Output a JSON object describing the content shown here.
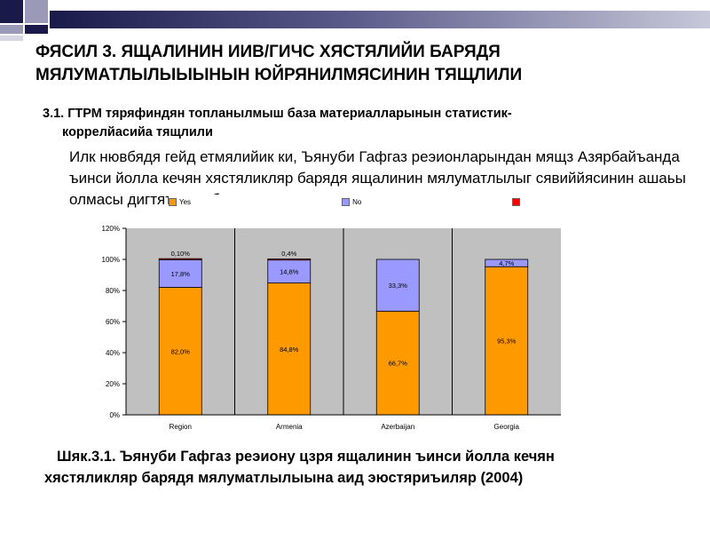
{
  "slide": {
    "title_line1": "ФЯСИЛ 3. ЯЩАЛИНИН ИИВ/ГИЧС ХЯСТЯЛИЙИ БАРЯДЯ",
    "title_line2": "МЯЛУМАТЛЫЛЫЫЫНЫН ЮЙРЯНИЛМЯСИНИН ТЯЩЛИЛИ",
    "subtitle_line1": "3.1. ГТРМ тяряфиндян топланылмыш база материалларынын статистик-",
    "subtitle_line2": "коррелйасийа тящлили",
    "paragraph": "Илк нювбядя гейд етмялийик ки, Ъянуби Гафгаз реэионларындан мящз Азярбайъанда ъинси йолла кечян хястяликляр барядя ящалинин мялуматлылыг сявиййясинин ашаьы олмасы дигтяти ъялб едир.",
    "caption_line1": "Шяк.3.1. Ъянуби Гафгаз реэиону цзря ящалинин ъинси йолла кечян",
    "caption_line2": "хястяликляр барядя мялуматлылыына аид эюстяриъиляр (2004)"
  },
  "colors": {
    "yes": "#FF9900",
    "no": "#9999FF",
    "third": "#FF0000",
    "plot_bg": "#C0C0C0",
    "accent_dark": "#1A1A4A",
    "accent_mid": "#5A5A8A"
  },
  "chart_data": {
    "type": "bar",
    "stacked": true,
    "categories": [
      "Region",
      "Armenia",
      "Azerbaijan",
      "Georgia"
    ],
    "series": [
      {
        "name": "Yes",
        "values": [
          82.0,
          84.8,
          66.7,
          95.3
        ],
        "labels": [
          "82,0%",
          "84,8%",
          "66,7%",
          "95,3%"
        ]
      },
      {
        "name": "No",
        "values": [
          17.8,
          14.8,
          33.3,
          4.7
        ],
        "labels": [
          "17,8%",
          "14,8%",
          "33,3%",
          "4,7%"
        ]
      },
      {
        "name": "",
        "values": [
          0.1,
          0.4,
          0,
          0
        ],
        "labels": [
          "0,10%",
          "0,4%",
          "",
          ""
        ]
      }
    ],
    "yticks": [
      "0%",
      "20%",
      "40%",
      "60%",
      "80%",
      "100%",
      "120%"
    ],
    "ylim": [
      0,
      120
    ],
    "grid": false,
    "legend_position": "top"
  }
}
